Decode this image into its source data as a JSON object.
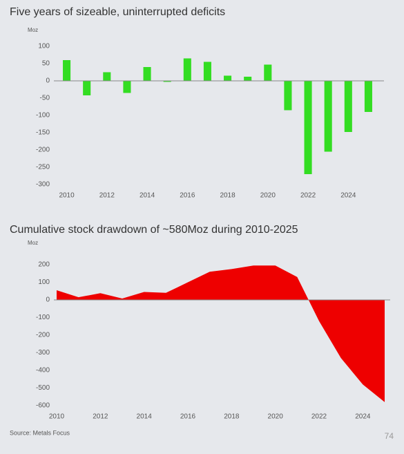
{
  "chart_data": [
    {
      "type": "bar",
      "title": "Five years of sizeable, uninterrupted deficits",
      "ylabel": "Moz",
      "x": [
        2010,
        2011,
        2012,
        2013,
        2014,
        2015,
        2016,
        2017,
        2018,
        2019,
        2020,
        2021,
        2022,
        2023,
        2024,
        2025
      ],
      "values": [
        60,
        -42,
        25,
        -35,
        40,
        -3,
        65,
        55,
        15,
        12,
        47,
        -85,
        -270,
        -205,
        -148,
        -90
      ],
      "color": "#33dd22",
      "xlim": [
        2009.5,
        2025.5
      ],
      "xticks": [
        2010,
        2012,
        2014,
        2016,
        2018,
        2020,
        2022,
        2024
      ],
      "ylim": [
        -300,
        100
      ],
      "yticks": [
        -300,
        -250,
        -200,
        -150,
        -100,
        -50,
        0,
        50,
        100
      ]
    },
    {
      "type": "area",
      "title": "Cumulative stock drawdown of ~580Moz during 2010-2025",
      "ylabel": "Moz",
      "x": [
        2010,
        2011,
        2012,
        2013,
        2014,
        2015,
        2016,
        2017,
        2018,
        2019,
        2020,
        2021,
        2022,
        2023,
        2024,
        2025
      ],
      "values": [
        55,
        15,
        38,
        8,
        45,
        40,
        100,
        160,
        175,
        195,
        195,
        130,
        -120,
        -330,
        -480,
        -580
      ],
      "color": "#ee0000",
      "xlim": [
        2010,
        2025
      ],
      "xticks": [
        2010,
        2012,
        2014,
        2016,
        2018,
        2020,
        2022,
        2024
      ],
      "ylim": [
        -600,
        200
      ],
      "yticks": [
        -600,
        -500,
        -400,
        -300,
        -200,
        -100,
        0,
        100,
        200
      ]
    }
  ],
  "footer": {
    "source": "Source: Metals Focus",
    "page": 74
  }
}
